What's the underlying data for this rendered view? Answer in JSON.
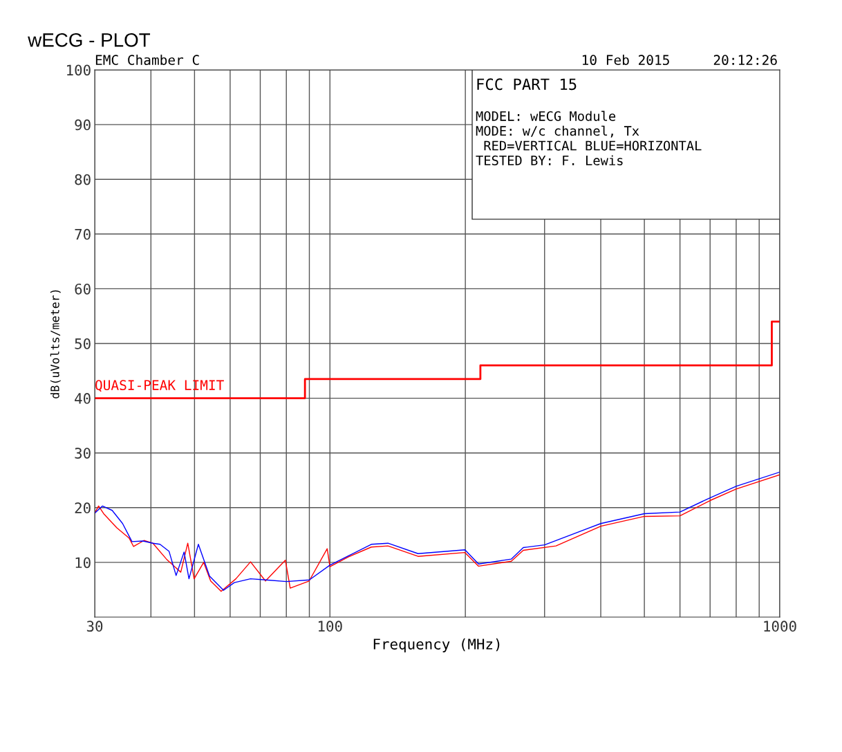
{
  "chart_data": {
    "type": "line",
    "title": "wECG - PLOT",
    "xlabel": "Frequency (MHz)",
    "ylabel": "dB(uVolts/meter)",
    "annotations": [
      "EMC Chamber C",
      "10 Feb 2015",
      "20:12:26",
      "FCC PART 15",
      "MODEL: wECG Module",
      "MODE: w/c channel, Tx",
      " RED=VERTICAL BLUE=HORIZONTAL",
      "TESTED BY: F. Lewis"
    ],
    "log": "x",
    "grid": true,
    "legend": false,
    "xlim": [
      30,
      1000
    ],
    "ylim": [
      0,
      100
    ],
    "xticks": [
      30,
      {
        "value": 40,
        "label": null
      },
      {
        "value": 50,
        "label": null
      },
      {
        "value": 60,
        "label": null
      },
      {
        "value": 70,
        "label": null
      },
      {
        "value": 80,
        "label": null
      },
      {
        "value": 90,
        "label": null
      },
      100,
      {
        "value": 200,
        "label": null
      },
      {
        "value": 300,
        "label": null
      },
      {
        "value": 400,
        "label": null
      },
      {
        "value": 500,
        "label": null
      },
      {
        "value": 600,
        "label": null
      },
      {
        "value": 700,
        "label": null
      },
      {
        "value": 800,
        "label": null
      },
      {
        "value": 900,
        "label": null
      },
      1000
    ],
    "yticks": [
      10,
      20,
      30,
      40,
      50,
      60,
      70,
      80,
      90,
      100
    ],
    "series": [
      {
        "color": "#ff0000",
        "x": [
          30,
          30.6,
          31.4,
          33.6,
          35.8,
          36.6,
          38.6,
          40.4,
          43.3,
          46.6,
          48.3,
          49.9,
          52.4,
          54.3,
          57.3,
          61.8,
          66.6,
          71.9,
          79.6,
          81.6,
          89.9,
          98.6,
          100,
          110,
          123.6,
          134.6,
          157,
          199.6,
          214,
          253,
          269,
          318,
          400,
          500,
          600,
          700,
          800,
          1000
        ],
        "values": [
          19,
          20.3,
          18.9,
          16.3,
          14.4,
          12.9,
          14.0,
          13.5,
          10.6,
          8.2,
          13.5,
          7.0,
          10.0,
          6.6,
          4.7,
          7.0,
          10.1,
          6.6,
          10.4,
          5.3,
          6.6,
          12.5,
          9.2,
          11.0,
          12.8,
          13.0,
          11.1,
          11.8,
          9.3,
          10.2,
          12.2,
          13.0,
          16.6,
          18.4,
          18.5,
          21.3,
          23.4,
          26.0
        ]
      },
      {
        "color": "#0000ff",
        "x": [
          30,
          31.2,
          32.8,
          34.6,
          36.3,
          38.4,
          40.4,
          41.9,
          43.9,
          45.5,
          47.4,
          48.6,
          51,
          54,
          58,
          61.3,
          66.6,
          72,
          80,
          90,
          100,
          110,
          123.6,
          134.6,
          157,
          199.6,
          214,
          253,
          269,
          300,
          400,
          500,
          600,
          700,
          800,
          1000
        ],
        "values": [
          19,
          20.3,
          19.5,
          17.1,
          13.8,
          13.9,
          13.5,
          13.3,
          12.0,
          7.6,
          11.9,
          7.0,
          13.3,
          7.5,
          4.9,
          6.3,
          7.0,
          6.8,
          6.5,
          6.8,
          9.5,
          11.2,
          13.3,
          13.5,
          11.6,
          12.3,
          9.7,
          10.6,
          12.7,
          13.2,
          17.1,
          18.9,
          19.2,
          21.8,
          23.9,
          26.5
        ]
      },
      {
        "name": "QUASI-PEAK LIMIT",
        "type": "step",
        "color": "#ff0000",
        "x": [
          30,
          88,
          216,
          960,
          1000
        ],
        "values": [
          40,
          43.5,
          46,
          54,
          54
        ]
      }
    ]
  }
}
